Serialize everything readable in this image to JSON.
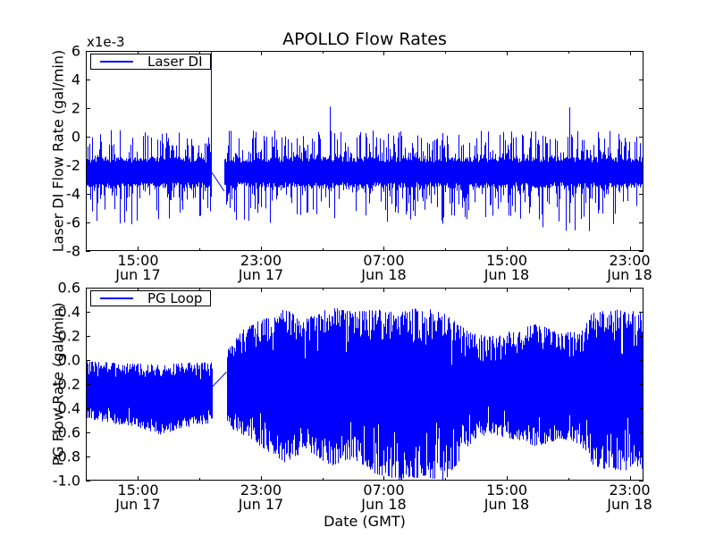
{
  "figure": {
    "title": "APOLLO Flow Rates",
    "background": "#ffffff",
    "line_color": "#0000ff",
    "frame_color": "#000000"
  },
  "xaxis": {
    "label": "Date (GMT)"
  },
  "chart_data": [
    {
      "type": "line",
      "series": [
        {
          "name": "Laser DI",
          "color": "#0000ff"
        }
      ],
      "legend": {
        "label": "Laser DI",
        "position": "upper left"
      },
      "ylabel": "Laser DI Flow Rate (gal/min)",
      "offset_label": "x1e-3",
      "value_scale": "1e-3",
      "xlabel": "",
      "ylim": [
        -8,
        6
      ],
      "yticks": [
        6,
        4,
        2,
        0,
        -2,
        -4,
        -6,
        -8
      ],
      "ytick_labels": [
        "6",
        "4",
        "2",
        "0",
        "-2",
        "-4",
        "-6",
        "-8"
      ],
      "x_hours": {
        "min": 11.6,
        "max": 47.9
      },
      "xticks": [
        {
          "t": 15,
          "time": "15:00",
          "date": "Jun 17"
        },
        {
          "t": 23,
          "time": "23:00",
          "date": "Jun 17"
        },
        {
          "t": 31,
          "time": "07:00",
          "date": "Jun 18"
        },
        {
          "t": 39,
          "time": "15:00",
          "date": "Jun 18"
        },
        {
          "t": 47,
          "time": "23:00",
          "date": "Jun 18"
        }
      ],
      "x_minor_ticks": [
        19,
        27,
        35,
        43
      ],
      "grid": false,
      "gap": {
        "t_start": 19.8,
        "t_end": 20.6,
        "bridge_from": -2.5,
        "bridge_to": -3.8
      },
      "noise_band": {
        "core_lo": -3.4,
        "core_hi": -1.6,
        "jitter": 0.4,
        "p_up": 0.6,
        "p_down": 0.5
      },
      "envelope": {
        "t": [
          11.6,
          14,
          17,
          19.8,
          20.6,
          23,
          26,
          29,
          32,
          35,
          38,
          41,
          44,
          47.9
        ],
        "spike_hi": [
          0.4,
          0.5,
          0.3,
          0.3,
          0.4,
          0.5,
          0.3,
          0.5,
          0.4,
          0.3,
          0.5,
          0.4,
          0.6,
          0.4
        ],
        "spike_lo": [
          -5.8,
          -7.0,
          -6.2,
          -5.6,
          -5.8,
          -6.4,
          -5.6,
          -6.6,
          -5.8,
          -6.2,
          -5.6,
          -6.4,
          -6.9,
          -5.8
        ]
      },
      "spike_events": [
        {
          "t": 19.75,
          "value": 6.0,
          "from": -2.6
        },
        {
          "t": 27.5,
          "value": 2.1,
          "from": -2.0
        },
        {
          "t": 43.1,
          "value": 2.05,
          "from": -2.0
        }
      ],
      "seed": 42
    },
    {
      "type": "line",
      "series": [
        {
          "name": "PG Loop",
          "color": "#0000ff"
        }
      ],
      "legend": {
        "label": "PG Loop",
        "position": "upper left"
      },
      "ylabel": "PG Flow Rate (gal/min)",
      "offset_label": "",
      "xlabel": "Date (GMT)",
      "ylim": [
        -1.0,
        0.6
      ],
      "yticks": [
        0.6,
        0.4,
        0.2,
        0.0,
        -0.2,
        -0.4,
        -0.6,
        -0.8,
        -1.0
      ],
      "ytick_labels": [
        "0.6",
        "0.4",
        "0.2",
        "0.0",
        "-0.2",
        "-0.4",
        "-0.6",
        "-0.8",
        "-1.0"
      ],
      "x_hours": {
        "min": 11.6,
        "max": 47.9
      },
      "xticks": [
        {
          "t": 15,
          "time": "15:00",
          "date": "Jun 17"
        },
        {
          "t": 23,
          "time": "23:00",
          "date": "Jun 17"
        },
        {
          "t": 31,
          "time": "07:00",
          "date": "Jun 18"
        },
        {
          "t": 39,
          "time": "15:00",
          "date": "Jun 18"
        },
        {
          "t": 47,
          "time": "23:00",
          "date": "Jun 18"
        }
      ],
      "x_minor_ticks": [
        19,
        27,
        35,
        43
      ],
      "grid": false,
      "gap": {
        "t_start": 19.85,
        "t_end": 20.75,
        "bridge_from": -0.22,
        "bridge_to": -0.1
      },
      "edge_jitter": 0.16,
      "envelope": {
        "t": [
          11.6,
          13,
          15,
          16.5,
          18,
          19.85,
          20.75,
          21.8,
          23,
          24.5,
          26,
          27.5,
          29,
          30.5,
          32,
          33.5,
          35,
          35.8,
          36.8,
          38,
          39.5,
          41,
          42.5,
          43.8,
          44.6,
          46,
          47.9
        ],
        "lo": [
          -0.48,
          -0.52,
          -0.56,
          -0.62,
          -0.56,
          -0.52,
          -0.55,
          -0.62,
          -0.72,
          -0.85,
          -0.75,
          -0.88,
          -0.82,
          -0.95,
          -1.0,
          -0.97,
          -1.0,
          -0.85,
          -0.66,
          -0.62,
          -0.66,
          -0.72,
          -0.65,
          -0.7,
          -0.88,
          -0.92,
          -0.9
        ],
        "hi": [
          -0.01,
          -0.02,
          -0.03,
          -0.04,
          -0.02,
          -0.02,
          0.08,
          0.25,
          0.35,
          0.42,
          0.35,
          0.44,
          0.4,
          0.42,
          0.4,
          0.44,
          0.38,
          0.3,
          0.22,
          0.2,
          0.25,
          0.3,
          0.22,
          0.25,
          0.4,
          0.42,
          0.4
        ]
      },
      "seed": 7
    }
  ]
}
